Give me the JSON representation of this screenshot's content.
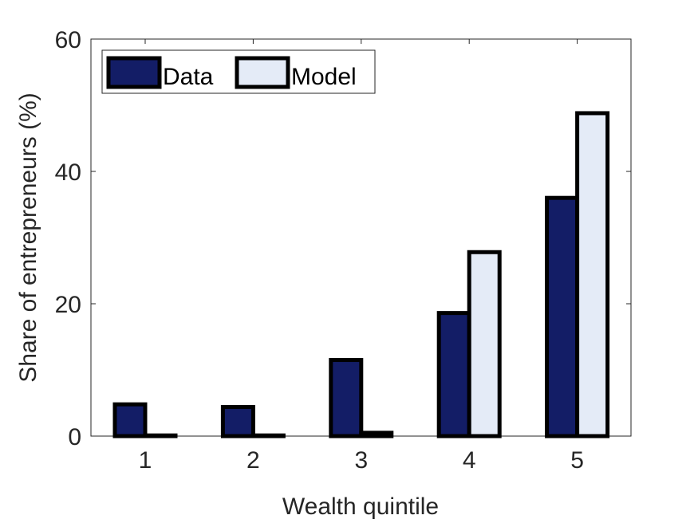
{
  "chart_data": {
    "type": "bar",
    "categories": [
      "1",
      "2",
      "3",
      "4",
      "5"
    ],
    "series": [
      {
        "name": "Data",
        "values": [
          4.8,
          4.4,
          11.5,
          18.6,
          36.0
        ],
        "color": "#131d66"
      },
      {
        "name": "Model",
        "values": [
          0.1,
          0.1,
          0.5,
          27.8,
          48.8
        ],
        "color": "#e4ebf7"
      }
    ],
    "xlabel": "Wealth quintile",
    "ylabel": "Share of entrepreneurs (%)",
    "ylim": [
      0,
      60
    ],
    "yticks": [
      "0",
      "20",
      "40",
      "60"
    ],
    "grid": false,
    "legend": "top-left",
    "bar_edge_color": "#000000"
  }
}
